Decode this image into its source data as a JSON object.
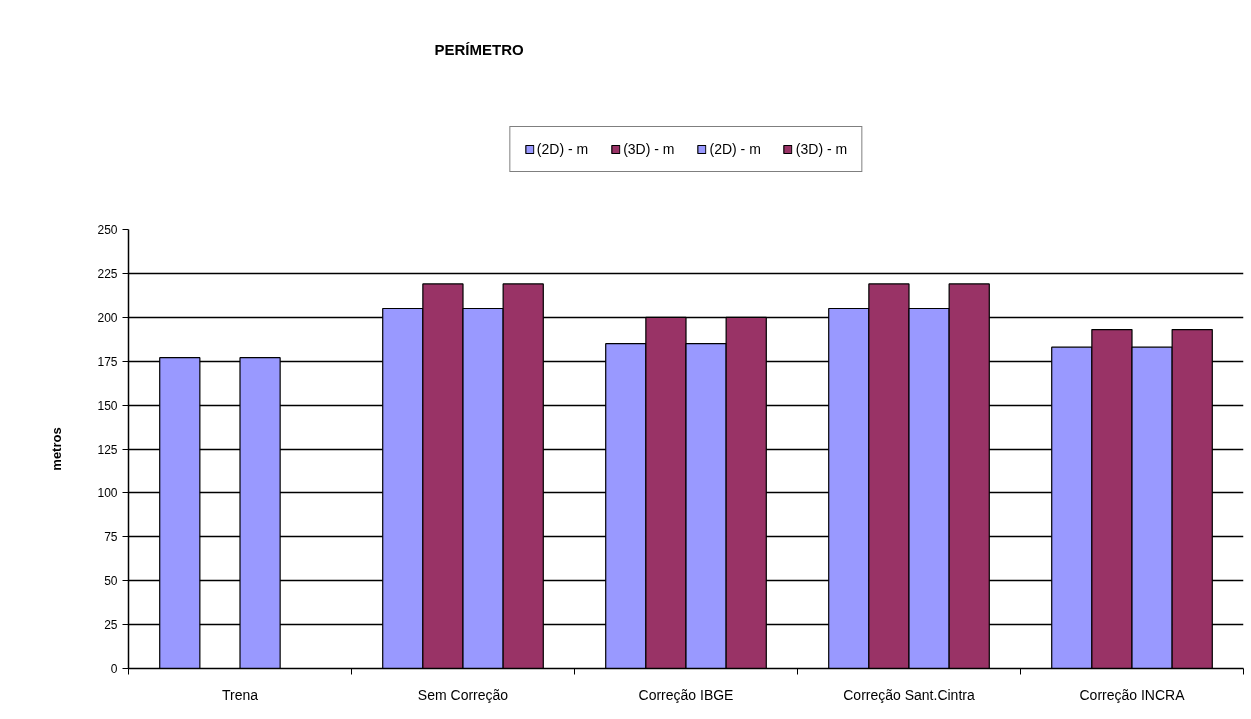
{
  "chart_data": {
    "type": "bar",
    "title": "PERÍMETRO",
    "ylabel": "metros",
    "categories": [
      "Trena",
      "Sem Correção",
      "Correção IBGE",
      "Correção Sant.Cintra",
      "Correção INCRA"
    ],
    "series": [
      {
        "name": "(2D) - m",
        "color": "#9999ff",
        "values": [
          177,
          205,
          185,
          205,
          183
        ]
      },
      {
        "name": "(3D) - m",
        "color": "#993366",
        "values": [
          null,
          219,
          200,
          219,
          193
        ]
      },
      {
        "name": "(2D) - m",
        "color": "#9999ff",
        "values": [
          177,
          205,
          185,
          205,
          183
        ]
      },
      {
        "name": "(3D) - m",
        "color": "#993366",
        "values": [
          null,
          219,
          200,
          219,
          193
        ]
      }
    ],
    "ylim": [
      0,
      250
    ],
    "yticks": [
      0,
      25,
      50,
      75,
      100,
      125,
      150,
      175,
      200,
      225,
      250
    ],
    "grid": "y",
    "legend": "top"
  }
}
